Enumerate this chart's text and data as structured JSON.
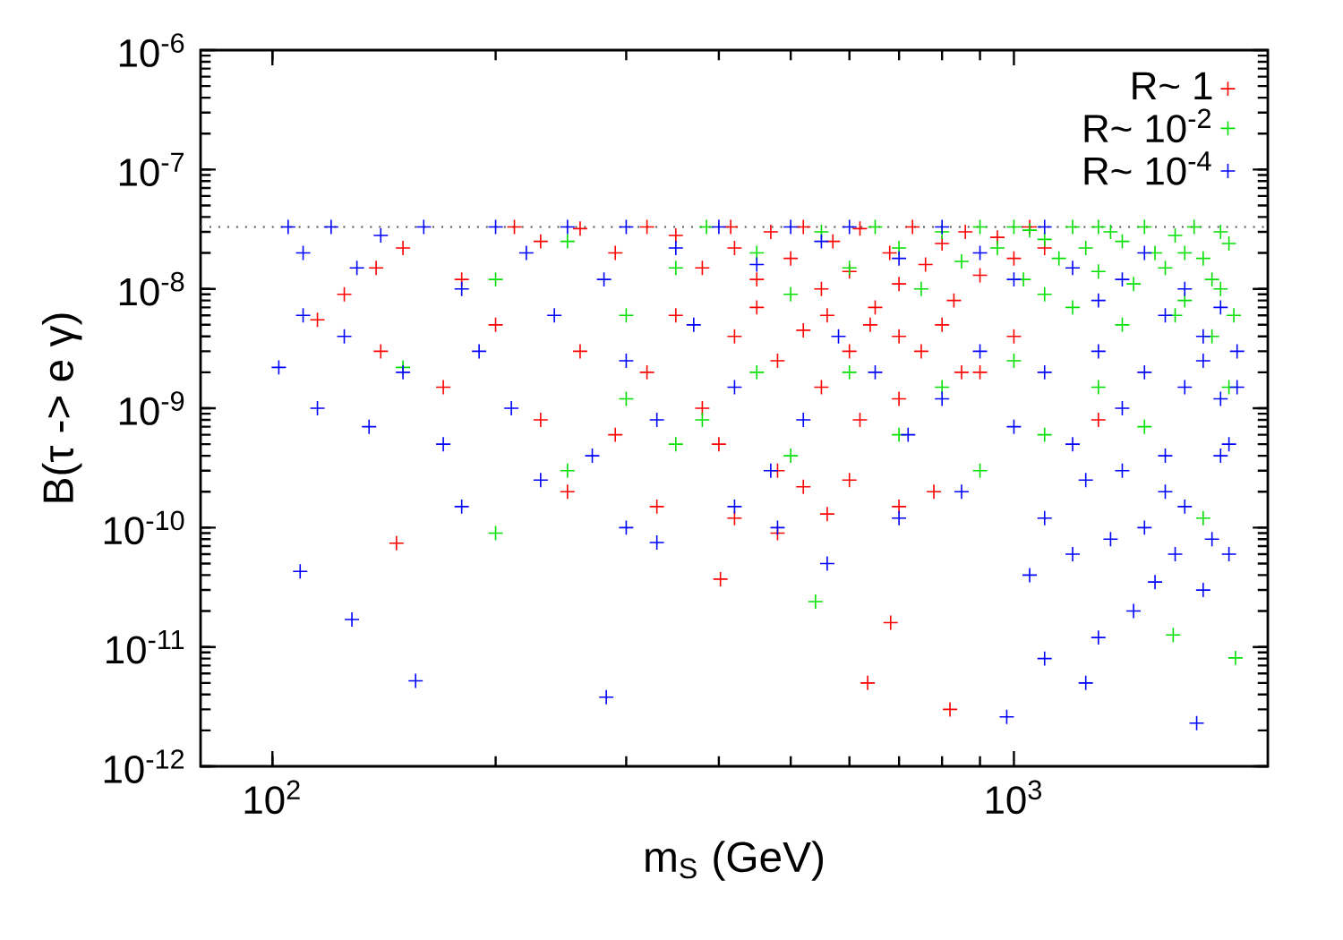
{
  "chart_data": {
    "type": "scatter",
    "xlabel": "m$_{S}$ (GeV)",
    "ylabel": "B(τ -> e γ)",
    "log": "xy",
    "xlim": [
      80,
      2200
    ],
    "ylim": [
      1e-12,
      1e-06
    ],
    "xticks": [
      {
        "value": 100,
        "label": "10$^{2}$"
      },
      {
        "value": 1000,
        "label": "10$^{3}$"
      }
    ],
    "yticks": [
      {
        "value": 1e-12,
        "label": "10$^{-12}$"
      },
      {
        "value": 1e-11,
        "label": "10$^{-11}$"
      },
      {
        "value": 1e-10,
        "label": "10$^{-10}$"
      },
      {
        "value": 1e-09,
        "label": "10$^{-9}$"
      },
      {
        "value": 1e-08,
        "label": "10$^{-8}$"
      },
      {
        "value": 1e-07,
        "label": "10$^{-7}$"
      },
      {
        "value": 1e-06,
        "label": "10$^{-6}$"
      }
    ],
    "marker": "cross",
    "legend": "top right",
    "grid": false,
    "ref_lines": [
      {
        "axis": "y",
        "value": 3.3e-08,
        "color": "#555555",
        "line_style": "dotted"
      }
    ],
    "series": [
      {
        "name": "R~ 1",
        "color": "#ff0000",
        "x": [
          212,
          230,
          260,
          290,
          320,
          350,
          380,
          415,
          420,
          450,
          470,
          500,
          520,
          550,
          570,
          600,
          620,
          650,
          680,
          700,
          730,
          760,
          800,
          830,
          860,
          900,
          950,
          1000,
          1050,
          1100,
          180,
          150,
          138,
          115,
          125,
          140,
          170,
          200,
          230,
          260,
          290,
          320,
          350,
          380,
          420,
          450,
          480,
          520,
          560,
          600,
          640,
          700,
          750,
          800,
          850,
          400,
          480,
          550,
          620,
          700,
          900,
          1000,
          147,
          250,
          330,
          402,
          420,
          480,
          520,
          560,
          600,
          635,
          682,
          700,
          780,
          820,
          1300
        ],
        "values": [
          3.3e-08,
          2.5e-08,
          3.2e-08,
          2e-08,
          3.3e-08,
          2.8e-08,
          1.5e-08,
          3.3e-08,
          2.2e-08,
          1.2e-08,
          3e-08,
          1.8e-08,
          3.3e-08,
          1e-08,
          2.5e-08,
          1.4e-08,
          3.2e-08,
          7e-09,
          2e-08,
          1.1e-08,
          3.3e-08,
          1.6e-08,
          2.4e-08,
          8e-09,
          3e-08,
          1.3e-08,
          2.7e-08,
          1.8e-08,
          3.3e-08,
          2.2e-08,
          1.2e-08,
          2.2e-08,
          1.5e-08,
          5.5e-09,
          9e-09,
          3e-09,
          1.5e-09,
          5e-09,
          8e-10,
          3e-09,
          6e-10,
          2e-09,
          6e-09,
          1e-09,
          4e-09,
          7e-09,
          2.5e-09,
          4.5e-09,
          6e-09,
          3e-09,
          5e-09,
          4e-09,
          3e-09,
          5e-09,
          2e-09,
          5e-10,
          3e-10,
          1.5e-09,
          8e-10,
          1.2e-09,
          2e-09,
          4e-09,
          7.4e-11,
          2e-10,
          1.5e-10,
          3.7e-11,
          1.2e-10,
          9e-11,
          2.2e-10,
          1.3e-10,
          2.5e-10,
          5e-12,
          1.6e-11,
          1.5e-10,
          2e-10,
          3e-12,
          8e-10
        ]
      },
      {
        "name": "R~ 10$^{-2}$",
        "color": "#00e000",
        "x": [
          150,
          200,
          250,
          300,
          350,
          385,
          450,
          500,
          550,
          600,
          650,
          700,
          750,
          800,
          850,
          900,
          950,
          1030,
          1050,
          1100,
          1150,
          1200,
          1250,
          1300,
          1350,
          1400,
          1450,
          1500,
          1550,
          1600,
          1650,
          1700,
          1750,
          1800,
          1850,
          1900,
          1950,
          1980,
          1200,
          1400,
          1650,
          1850,
          1900,
          1100,
          1700,
          1300,
          1000,
          250,
          300,
          380,
          450,
          500,
          540,
          600,
          700,
          800,
          900,
          1000,
          1100,
          1300,
          1500,
          1640,
          1800,
          1990,
          1950,
          200,
          350
        ],
        "values": [
          2.2e-09,
          1.2e-08,
          2.5e-08,
          6e-09,
          1.5e-08,
          3.3e-08,
          2e-08,
          9e-09,
          3e-08,
          1.5e-08,
          3.3e-08,
          2.2e-08,
          1e-08,
          3e-08,
          1.7e-08,
          3.3e-08,
          2.2e-08,
          1.2e-08,
          3.1e-08,
          2.6e-08,
          1.8e-08,
          3.3e-08,
          2.2e-08,
          1.4e-08,
          3e-08,
          2.5e-08,
          1.1e-08,
          3.3e-08,
          2e-08,
          1.5e-08,
          2.8e-08,
          8e-09,
          3.3e-08,
          1.8e-08,
          1.2e-08,
          3e-08,
          2.4e-08,
          6e-09,
          7e-09,
          5e-09,
          6e-09,
          4e-09,
          1e-08,
          9e-09,
          2e-08,
          3.3e-08,
          3.3e-08,
          3e-10,
          1.2e-09,
          8e-10,
          2e-09,
          4e-10,
          2.4e-11,
          2e-09,
          6e-10,
          1.5e-09,
          3e-10,
          2.5e-09,
          6e-10,
          1.5e-09,
          7e-10,
          1.26e-11,
          1.2e-10,
          8.1e-12,
          1.5e-09,
          9e-11,
          5e-10
        ]
      },
      {
        "name": "R~ 10$^{-4}$",
        "color": "#0000ff",
        "x": [
          105,
          110,
          120,
          130,
          140,
          160,
          180,
          200,
          220,
          250,
          280,
          300,
          350,
          400,
          450,
          500,
          550,
          600,
          700,
          800,
          900,
          1000,
          1100,
          1200,
          1300,
          1400,
          1500,
          1600,
          1700,
          1800,
          1900,
          2000,
          102,
          110,
          115,
          125,
          135,
          150,
          170,
          190,
          210,
          240,
          270,
          300,
          330,
          370,
          420,
          470,
          520,
          580,
          650,
          720,
          800,
          900,
          1000,
          1100,
          1200,
          1300,
          1400,
          1500,
          1600,
          1700,
          1800,
          1900,
          2000,
          1950,
          109,
          128,
          156,
          180,
          230,
          282,
          300,
          330,
          420,
          480,
          560,
          700,
          850,
          978,
          1050,
          1100,
          1200,
          1250,
          1300,
          1350,
          1400,
          1450,
          1500,
          1550,
          1600,
          1650,
          1700,
          1764,
          1800,
          1850,
          1900,
          1950,
          1100,
          1250
        ],
        "values": [
          3.3e-08,
          2e-08,
          3.3e-08,
          1.5e-08,
          2.8e-08,
          3.3e-08,
          1e-08,
          3.3e-08,
          2e-08,
          3.3e-08,
          1.2e-08,
          3.3e-08,
          2.2e-08,
          3.3e-08,
          1.6e-08,
          3.3e-08,
          2.5e-08,
          3.3e-08,
          1.8e-08,
          3.3e-08,
          2e-08,
          1.2e-08,
          3.3e-08,
          1.5e-08,
          8e-09,
          1.2e-08,
          2e-08,
          6e-09,
          1e-08,
          4e-09,
          7e-09,
          3e-09,
          2.2e-09,
          6e-09,
          1e-09,
          4e-09,
          7e-10,
          2e-09,
          5e-10,
          3e-09,
          1e-09,
          6e-09,
          4e-10,
          2.5e-09,
          8e-10,
          5e-09,
          1.5e-09,
          3e-10,
          8e-10,
          4e-09,
          2e-09,
          6e-10,
          1.2e-09,
          3e-09,
          7e-10,
          2e-09,
          5e-10,
          3e-09,
          1e-09,
          2e-09,
          4e-10,
          1.5e-09,
          2.5e-09,
          1.2e-09,
          1.5e-09,
          5e-10,
          4.3e-11,
          1.7e-11,
          5.2e-12,
          1.5e-10,
          2.5e-10,
          3.8e-12,
          1e-10,
          7.5e-11,
          1.5e-10,
          1e-10,
          5e-11,
          1.2e-10,
          2e-10,
          2.6e-12,
          4e-11,
          1.2e-10,
          6e-11,
          2.5e-10,
          1.2e-11,
          8e-11,
          3e-10,
          2e-11,
          1e-10,
          3.5e-11,
          2e-10,
          6e-11,
          1.5e-10,
          2.3e-12,
          3e-11,
          8e-11,
          4e-10,
          6e-11,
          8e-12,
          5e-12
        ]
      }
    ]
  }
}
